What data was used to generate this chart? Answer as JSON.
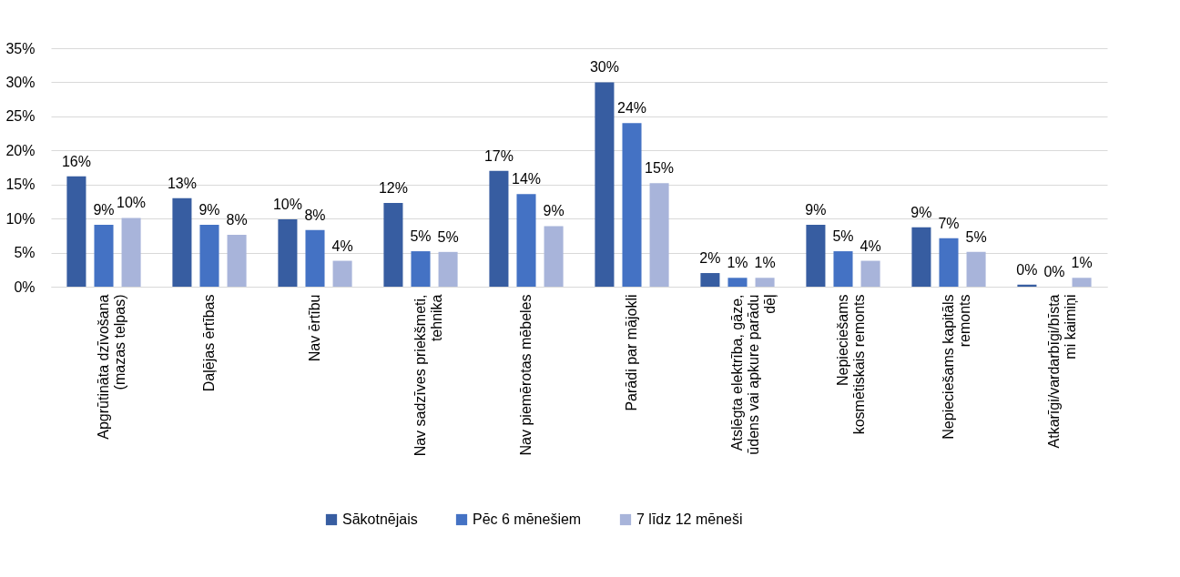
{
  "chart_data": {
    "type": "bar",
    "categories": [
      "Apgrūtināta dzīvošana\n(mazas telpas)",
      "Daļējas ērtības",
      "Nav ērtību",
      "Nav sadzīves priekšmeti,\ntehnika",
      "Nav piemērotas mēbeles",
      "Parādi par mājokli",
      "Atslēgta elektrība, gāze,\nūdens vai apkure parādu\ndēļ",
      "Nepieciešams\nkosmētiskais remonts",
      "Nepieciešams kapitāls\nremonts",
      "Atkarīgi/vardarbīgi/bīsta\nmi kaimiņi"
    ],
    "series": [
      {
        "name": "Sākotnējais",
        "color": "#375da1",
        "values": [
          16.2,
          13,
          9.9,
          12.3,
          17,
          30,
          2,
          9.1,
          8.7,
          0.3
        ],
        "value_labels": [
          "16%",
          "13%",
          "10%",
          "12%",
          "17%",
          "30%",
          "2%",
          "9%",
          "9%",
          "0%"
        ]
      },
      {
        "name": "Pēc 6 mēnešiem",
        "color": "#4472c4",
        "values": [
          9.1,
          9.1,
          8.3,
          5.2,
          13.6,
          24,
          1.3,
          5.2,
          7.1,
          0
        ],
        "value_labels": [
          "9%",
          "9%",
          "8%",
          "5%",
          "14%",
          "24%",
          "1%",
          "5%",
          "7%",
          "0%"
        ]
      },
      {
        "name": "7 līdz 12 mēneši",
        "color": "#a8b4da",
        "values": [
          10.1,
          7.6,
          3.8,
          5.1,
          8.9,
          15.2,
          1.3,
          3.8,
          5.1,
          1.3
        ],
        "value_labels": [
          "10%",
          "8%",
          "4%",
          "5%",
          "9%",
          "15%",
          "1%",
          "4%",
          "5%",
          "1%"
        ]
      }
    ],
    "ylim": [
      0,
      35
    ],
    "yticks": [
      {
        "value": 0,
        "label": "0%"
      },
      {
        "value": 5,
        "label": "5%"
      },
      {
        "value": 10,
        "label": "10%"
      },
      {
        "value": 15,
        "label": "15%"
      },
      {
        "value": 20,
        "label": "20%"
      },
      {
        "value": 25,
        "label": "25%"
      },
      {
        "value": 30,
        "label": "30%"
      },
      {
        "value": 35,
        "label": "35%"
      }
    ],
    "grid": "y",
    "legend": "bottom"
  }
}
